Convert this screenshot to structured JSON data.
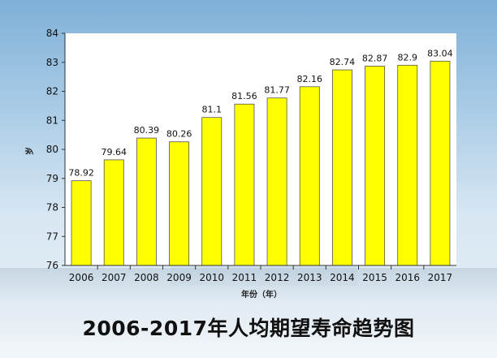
{
  "chart_data": {
    "type": "bar",
    "categories": [
      "2006",
      "2007",
      "2008",
      "2009",
      "2010",
      "2011",
      "2012",
      "2013",
      "2014",
      "2015",
      "2016",
      "2017"
    ],
    "values": [
      78.92,
      79.64,
      80.39,
      80.26,
      81.1,
      81.56,
      81.77,
      82.16,
      82.74,
      82.87,
      82.9,
      83.04
    ],
    "value_labels": [
      "78.92",
      "79.64",
      "80.39",
      "80.26",
      "81.1",
      "81.56",
      "81.77",
      "82.16",
      "82.74",
      "82.87",
      "82.9",
      "83.04"
    ],
    "title": "2006-2017年人均期望寿命趋势图",
    "xlabel": "年份（年）",
    "ylabel": "岁",
    "ylim": [
      76,
      84
    ],
    "yticks": [
      "76",
      "77",
      "78",
      "79",
      "80",
      "81",
      "82",
      "83",
      "84"
    ],
    "grid": false,
    "legend": "none",
    "colors": {
      "bar": "#ffff00",
      "plot_bg": "#ffffff",
      "bar_edge": "#555555"
    }
  }
}
